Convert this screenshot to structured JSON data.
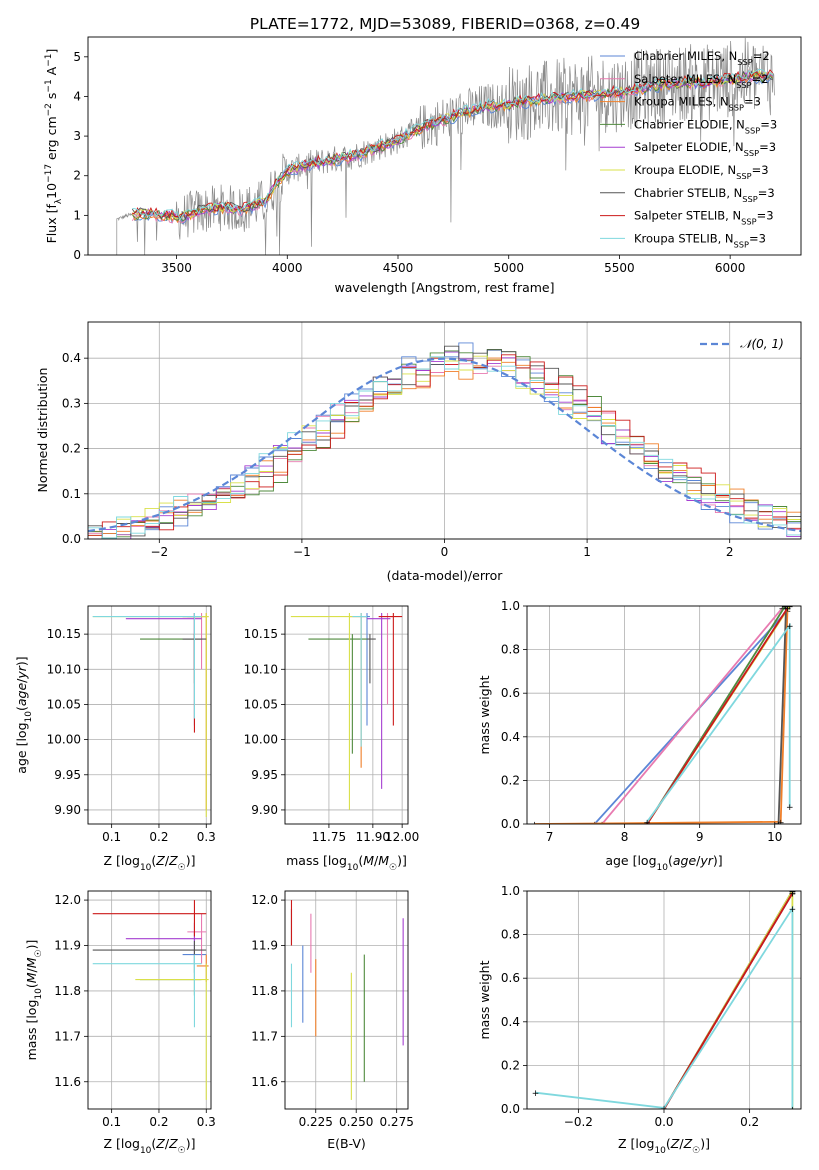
{
  "title": "PLATE=1772, MJD=53089, FIBERID=0368, z=0.49",
  "colors": {
    "Chabrier MILES": "#5b86d6",
    "Salpeter MILES": "#e87ab0",
    "Kroupa MILES": "#f07f29",
    "Chabrier ELODIE": "#4f8a3d",
    "Salpeter ELODIE": "#a53fd1",
    "Kroupa ELODIE": "#d9e04a",
    "Chabrier STELIB": "#555555",
    "Salpeter STELIB": "#cc1a1a",
    "Kroupa STELIB": "#7fd8de",
    "spectrum": "#8a8a8a"
  },
  "chart_data": [
    {
      "id": "spectrum",
      "type": "line",
      "xlabel": "wavelength [Angstrom, rest frame]",
      "ylabel": "Flux [$f_\\lambda 10^{-17}$ erg cm$^{-2}$ s$^{-1}$ A$^{-1}$]",
      "ylabel_display": [
        "Flux [f",
        "λ",
        "10",
        "−17",
        " erg cm",
        "−2",
        " s",
        "−1",
        " A",
        "−1",
        "]"
      ],
      "xlim": [
        3100,
        6320
      ],
      "ylim": [
        0,
        5.5
      ],
      "xticks": [
        3500,
        4000,
        4500,
        5000,
        5500,
        6000
      ],
      "yticks": [
        0,
        1,
        2,
        3,
        4,
        5
      ],
      "grid": false,
      "legend_position": "top-right",
      "legend": [
        {
          "name": "Chabrier MILES",
          "nssp": "2"
        },
        {
          "name": "Salpeter MILES",
          "nssp": "2"
        },
        {
          "name": "Kroupa MILES",
          "nssp": "3"
        },
        {
          "name": "Chabrier ELODIE",
          "nssp": "3"
        },
        {
          "name": "Salpeter ELODIE",
          "nssp": "3"
        },
        {
          "name": "Kroupa ELODIE",
          "nssp": "3"
        },
        {
          "name": "Chabrier STELIB",
          "nssp": "3"
        },
        {
          "name": "Salpeter STELIB",
          "nssp": "3"
        },
        {
          "name": "Kroupa STELIB",
          "nssp": "3"
        }
      ],
      "spectrum_start": 3230,
      "spectrum_end": 6200,
      "model_knots": [
        [
          3230,
          0.9
        ],
        [
          3280,
          1.0
        ],
        [
          3350,
          1.05
        ],
        [
          3450,
          1.0
        ],
        [
          3520,
          0.95
        ],
        [
          3600,
          1.1
        ],
        [
          3700,
          1.2
        ],
        [
          3800,
          1.15
        ],
        [
          3900,
          1.35
        ],
        [
          3950,
          1.8
        ],
        [
          4000,
          2.1
        ],
        [
          4100,
          2.3
        ],
        [
          4200,
          2.4
        ],
        [
          4300,
          2.5
        ],
        [
          4400,
          2.7
        ],
        [
          4500,
          2.9
        ],
        [
          4600,
          3.2
        ],
        [
          4700,
          3.4
        ],
        [
          4800,
          3.6
        ],
        [
          4900,
          3.75
        ],
        [
          5000,
          3.8
        ],
        [
          5100,
          3.9
        ],
        [
          5200,
          3.95
        ],
        [
          5300,
          4.0
        ],
        [
          5400,
          4.05
        ],
        [
          5500,
          4.1
        ],
        [
          5600,
          4.2
        ],
        [
          5700,
          4.3
        ],
        [
          5800,
          4.35
        ],
        [
          5900,
          4.35
        ],
        [
          6000,
          4.45
        ],
        [
          6100,
          4.5
        ],
        [
          6200,
          4.5
        ]
      ]
    },
    {
      "id": "residuals",
      "type": "histogram",
      "xlabel": "(data-model)/error",
      "ylabel": "Normed distribution",
      "xlim": [
        -2.5,
        2.5
      ],
      "ylim": [
        0,
        0.48
      ],
      "xticks": [
        -2,
        -1,
        0,
        1,
        2
      ],
      "yticks": [
        0.0,
        0.1,
        0.2,
        0.3,
        0.4
      ],
      "grid": true,
      "legend_position": "top-right",
      "legend": "𝒩(0, 1)"
    },
    {
      "id": "age_vs_Z",
      "type": "errorbar",
      "xlabel": "Z [log10(Z/Z☉)]",
      "ylabel": "age  [log10(age/yr)]",
      "xlim": [
        0.05,
        0.31
      ],
      "ylim": [
        9.88,
        10.19
      ],
      "xticks": [
        0.1,
        0.2,
        0.3
      ],
      "yticks": [
        9.9,
        9.95,
        10.0,
        10.05,
        10.1,
        10.15
      ],
      "grid": true
    },
    {
      "id": "age_vs_mass",
      "type": "errorbar",
      "xlabel": "mass [log10(M/M☉)]",
      "xlim": [
        11.6,
        12.02
      ],
      "ylim": [
        9.88,
        10.19
      ],
      "xticks": [
        11.75,
        11.9,
        12.0
      ],
      "yticks": [
        9.9,
        9.95,
        10.0,
        10.05,
        10.1,
        10.15
      ],
      "grid": true
    },
    {
      "id": "mass_weight_vs_age",
      "type": "line",
      "xlabel": "age  [log10(age/yr)]",
      "ylabel": "mass weight",
      "xlim": [
        6.7,
        10.35
      ],
      "ylim": [
        0,
        1.0
      ],
      "xticks": [
        7,
        8,
        9,
        10
      ],
      "yticks": [
        0.0,
        0.2,
        0.4,
        0.6,
        0.8,
        1.0
      ],
      "grid": true
    },
    {
      "id": "mass_vs_Z",
      "type": "errorbar",
      "xlabel": "Z [log10(Z/Z☉)]",
      "ylabel": "mass [log10(M/M☉)]",
      "xlim": [
        0.05,
        0.31
      ],
      "ylim": [
        11.54,
        12.02
      ],
      "xticks": [
        0.1,
        0.2,
        0.3
      ],
      "yticks": [
        11.6,
        11.7,
        11.8,
        11.9,
        12.0
      ],
      "grid": true
    },
    {
      "id": "mass_vs_ebv",
      "type": "errorbar",
      "xlabel": "E(B-V)",
      "xlim": [
        0.206,
        0.282
      ],
      "ylim": [
        11.54,
        12.02
      ],
      "xticks": [
        0.225,
        0.25,
        0.275
      ],
      "xticklabels": [
        "0.225",
        "0.250",
        "0.275"
      ],
      "yticks": [
        11.6,
        11.7,
        11.8,
        11.9,
        12.0
      ],
      "grid": true
    },
    {
      "id": "mass_weight_vs_Z",
      "type": "line",
      "xlabel": "Z [log10(Z/Z☉)]",
      "ylabel": "mass weight",
      "xlim": [
        -0.32,
        0.32
      ],
      "ylim": [
        0,
        1.0
      ],
      "xticks": [
        -0.2,
        0.0,
        0.2
      ],
      "yticks": [
        0.0,
        0.2,
        0.4,
        0.6,
        0.8,
        1.0
      ],
      "grid": true
    }
  ],
  "series_data": {
    "age_Z": [
      {
        "model": "Chabrier MILES",
        "x": 0.275,
        "y": 10.175,
        "xerr": [
          0.26,
          0.29
        ],
        "yerr": [
          10.02,
          10.18
        ]
      },
      {
        "model": "Salpeter MILES",
        "x": 0.29,
        "y": 10.175,
        "xerr": [
          0.26,
          0.3
        ],
        "yerr": [
          10.1,
          10.18
        ]
      },
      {
        "model": "Kroupa MILES",
        "x": 0.3,
        "y": 10.175,
        "xerr": [
          0.28,
          0.305
        ],
        "yerr": [
          9.9,
          10.18
        ]
      },
      {
        "model": "Chabrier ELODIE",
        "x": 0.275,
        "y": 10.143,
        "xerr": [
          0.16,
          0.29
        ],
        "yerr": [
          10.1,
          10.15
        ]
      },
      {
        "model": "Salpeter ELODIE",
        "x": 0.275,
        "y": 10.172,
        "xerr": [
          0.13,
          0.29
        ],
        "yerr": [
          10.1,
          10.18
        ]
      },
      {
        "model": "Kroupa ELODIE",
        "x": 0.3,
        "y": 10.175,
        "xerr": [
          0.06,
          0.305
        ],
        "yerr": [
          9.89,
          10.18
        ]
      },
      {
        "model": "Chabrier STELIB",
        "x": 0.275,
        "y": 10.143,
        "xerr": [
          0.25,
          0.3
        ],
        "yerr": [
          10.08,
          10.15
        ]
      },
      {
        "model": "Salpeter STELIB",
        "x": 0.275,
        "y": 10.175,
        "xerr": [
          0.25,
          0.29
        ],
        "yerr": [
          10.01,
          10.18
        ]
      },
      {
        "model": "Kroupa STELIB",
        "x": 0.275,
        "y": 10.175,
        "xerr": [
          0.06,
          0.29
        ],
        "yerr": [
          10.03,
          10.18
        ]
      }
    ],
    "age_mass": [
      {
        "model": "Chabrier MILES",
        "x": 11.88,
        "y": 10.175,
        "xerr": [
          11.86,
          11.89
        ],
        "yerr": [
          10.02,
          10.18
        ]
      },
      {
        "model": "Salpeter MILES",
        "x": 11.95,
        "y": 10.175,
        "xerr": [
          11.92,
          11.97
        ],
        "yerr": [
          10.05,
          10.18
        ]
      },
      {
        "model": "Kroupa MILES",
        "x": 11.86,
        "y": 10.175,
        "xerr": [
          11.82,
          11.88
        ],
        "yerr": [
          9.96,
          10.18
        ]
      },
      {
        "model": "Chabrier ELODIE",
        "x": 11.83,
        "y": 10.143,
        "xerr": [
          11.68,
          11.88
        ],
        "yerr": [
          9.98,
          10.15
        ]
      },
      {
        "model": "Salpeter ELODIE",
        "x": 11.93,
        "y": 10.172,
        "xerr": [
          11.88,
          11.96
        ],
        "yerr": [
          9.93,
          10.18
        ]
      },
      {
        "model": "Kroupa ELODIE",
        "x": 11.82,
        "y": 10.175,
        "xerr": [
          11.62,
          11.86
        ],
        "yerr": [
          9.9,
          10.18
        ]
      },
      {
        "model": "Chabrier STELIB",
        "x": 11.89,
        "y": 10.143,
        "xerr": [
          11.88,
          11.91
        ],
        "yerr": [
          10.08,
          10.15
        ]
      },
      {
        "model": "Salpeter STELIB",
        "x": 11.97,
        "y": 10.175,
        "xerr": [
          11.92,
          12.0
        ],
        "yerr": [
          10.02,
          10.18
        ]
      },
      {
        "model": "Kroupa STELIB",
        "x": 11.86,
        "y": 10.175,
        "xerr": [
          11.83,
          11.88
        ],
        "yerr": [
          9.99,
          10.18
        ]
      }
    ],
    "mass_Z": [
      {
        "model": "Chabrier MILES",
        "x": 0.275,
        "y": 11.88,
        "xerr": [
          0.25,
          0.3
        ],
        "yerr": [
          11.84,
          11.93
        ]
      },
      {
        "model": "Salpeter MILES",
        "x": 0.29,
        "y": 11.93,
        "xerr": [
          0.26,
          0.3
        ],
        "yerr": [
          11.86,
          11.97
        ]
      },
      {
        "model": "Kroupa MILES",
        "x": 0.3,
        "y": 11.855,
        "xerr": [
          0.28,
          0.305
        ],
        "yerr": [
          11.82,
          11.88
        ]
      },
      {
        "model": "Chabrier ELODIE",
        "x": 0.275,
        "y": 11.825,
        "xerr": [
          0.16,
          0.29
        ],
        "yerr": [
          11.79,
          11.86
        ]
      },
      {
        "model": "Salpeter ELODIE",
        "x": 0.275,
        "y": 11.915,
        "xerr": [
          0.13,
          0.29
        ],
        "yerr": [
          11.88,
          11.95
        ]
      },
      {
        "model": "Kroupa ELODIE",
        "x": 0.3,
        "y": 11.825,
        "xerr": [
          0.15,
          0.305
        ],
        "yerr": [
          11.56,
          11.86
        ]
      },
      {
        "model": "Chabrier STELIB",
        "x": 0.275,
        "y": 11.89,
        "xerr": [
          0.06,
          0.3
        ],
        "yerr": [
          11.86,
          11.91
        ]
      },
      {
        "model": "Salpeter STELIB",
        "x": 0.275,
        "y": 11.97,
        "xerr": [
          0.06,
          0.3
        ],
        "yerr": [
          11.92,
          12.0
        ]
      },
      {
        "model": "Kroupa STELIB",
        "x": 0.275,
        "y": 11.86,
        "xerr": [
          0.06,
          0.29
        ],
        "yerr": [
          11.72,
          11.88
        ]
      }
    ],
    "mass_ebv": [
      {
        "model": "Chabrier MILES",
        "x": 0.217,
        "y": 11.88,
        "yerr": [
          11.73,
          11.9
        ]
      },
      {
        "model": "Salpeter MILES",
        "x": 0.222,
        "y": 11.9,
        "yerr": [
          11.84,
          11.97
        ]
      },
      {
        "model": "Kroupa MILES",
        "x": 0.225,
        "y": 11.83,
        "yerr": [
          11.7,
          11.87
        ]
      },
      {
        "model": "Chabrier ELODIE",
        "x": 0.255,
        "y": 11.78,
        "yerr": [
          11.6,
          11.88
        ]
      },
      {
        "model": "Salpeter ELODIE",
        "x": 0.279,
        "y": 11.9,
        "yerr": [
          11.68,
          11.96
        ]
      },
      {
        "model": "Kroupa ELODIE",
        "x": 0.247,
        "y": 11.7,
        "yerr": [
          11.56,
          11.84
        ]
      },
      {
        "model": "Chabrier STELIB",
        "x": 0.21,
        "y": 11.94,
        "yerr": [
          11.9,
          11.98
        ]
      },
      {
        "model": "Salpeter STELIB",
        "x": 0.21,
        "y": 11.96,
        "yerr": [
          11.9,
          12.0
        ]
      },
      {
        "model": "Kroupa STELIB",
        "x": 0.21,
        "y": 11.8,
        "yerr": [
          11.72,
          11.86
        ]
      }
    ],
    "mw_age": [
      {
        "model": "Chabrier MILES",
        "pts": [
          [
            7.6,
            0.0
          ],
          [
            10.17,
            0.98
          ]
        ]
      },
      {
        "model": "Salpeter MILES",
        "pts": [
          [
            7.7,
            0.0
          ],
          [
            10.1,
            0.99
          ]
        ]
      },
      {
        "model": "Kroupa MILES",
        "pts": [
          [
            6.8,
            0.0
          ],
          [
            10.08,
            0.01
          ],
          [
            10.17,
            0.99
          ]
        ]
      },
      {
        "model": "Chabrier ELODIE",
        "pts": [
          [
            8.3,
            0.0
          ],
          [
            10.14,
            1.0
          ]
        ]
      },
      {
        "model": "Salpeter ELODIE",
        "pts": [
          [
            8.3,
            0.0
          ],
          [
            10.17,
            0.99
          ]
        ]
      },
      {
        "model": "Kroupa ELODIE",
        "pts": [
          [
            8.3,
            0.0
          ],
          [
            10.2,
            1.0
          ]
        ]
      },
      {
        "model": "Chabrier STELIB",
        "pts": [
          [
            10.0,
            0.0
          ],
          [
            10.05,
            0.0
          ],
          [
            10.15,
            0.99
          ]
        ]
      },
      {
        "model": "Salpeter STELIB",
        "pts": [
          [
            8.3,
            0.0
          ],
          [
            10.17,
            0.99
          ]
        ]
      },
      {
        "model": "Kroupa STELIB",
        "pts": [
          [
            8.3,
            0.01
          ],
          [
            10.2,
            0.91
          ],
          [
            10.2,
            0.08
          ]
        ]
      }
    ],
    "mw_Z": [
      {
        "model": "Chabrier MILES",
        "pts": [
          [
            0.0,
            0.0
          ],
          [
            0.3,
            1.0
          ]
        ]
      },
      {
        "model": "Salpeter MILES",
        "pts": [
          [
            0.0,
            0.0
          ],
          [
            0.3,
            0.99
          ]
        ]
      },
      {
        "model": "Kroupa MILES",
        "pts": [
          [
            0.0,
            0.0
          ],
          [
            0.3,
            1.0
          ]
        ]
      },
      {
        "model": "Chabrier ELODIE",
        "pts": [
          [
            0.0,
            0.0
          ],
          [
            0.3,
            1.0
          ]
        ]
      },
      {
        "model": "Salpeter ELODIE",
        "pts": [
          [
            0.0,
            0.0
          ],
          [
            0.3,
            0.99
          ]
        ]
      },
      {
        "model": "Kroupa ELODIE",
        "pts": [
          [
            0.0,
            0.0
          ],
          [
            0.3,
            1.0
          ],
          [
            0.3,
            0.0
          ]
        ]
      },
      {
        "model": "Chabrier STELIB",
        "pts": [
          [
            0.0,
            0.0
          ],
          [
            0.3,
            0.99
          ]
        ]
      },
      {
        "model": "Salpeter STELIB",
        "pts": [
          [
            0.0,
            0.0
          ],
          [
            0.3,
            0.99
          ]
        ]
      },
      {
        "model": "Kroupa STELIB",
        "pts": [
          [
            -0.3,
            0.075
          ],
          [
            0.0,
            0.005
          ],
          [
            0.3,
            0.92
          ],
          [
            0.3,
            0.0
          ]
        ]
      }
    ]
  }
}
